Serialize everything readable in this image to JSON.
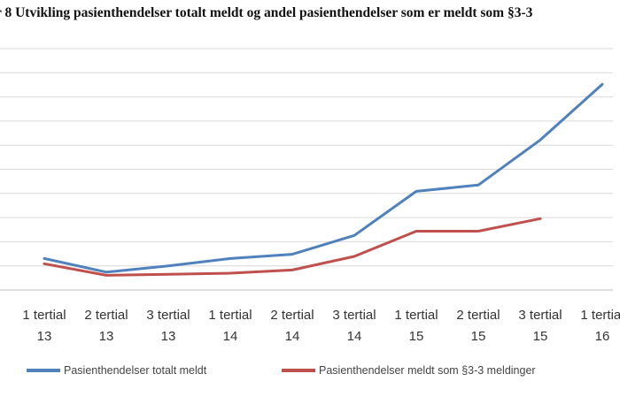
{
  "chart_data": {
    "type": "line",
    "title": "r 8 Utvikling pasienthendelser totalt meldt og andel pasienthendelser som er meldt som §3-3",
    "categories": [
      [
        "1 tertial",
        "13"
      ],
      [
        "2 tertial",
        "13"
      ],
      [
        "3 tertial",
        "13"
      ],
      [
        "1 tertial",
        "14"
      ],
      [
        "2 tertial",
        "14"
      ],
      [
        "3 tertial",
        "14"
      ],
      [
        "1 tertial",
        "15"
      ],
      [
        "2 tertial",
        "15"
      ],
      [
        "3 tertial",
        "15"
      ],
      [
        "1 tertial",
        "16"
      ]
    ],
    "series": [
      {
        "name": "Pasienthendelser totalt meldt",
        "color": "#4f81bd",
        "values": [
          3.0,
          1.7,
          2.3,
          3.0,
          3.4,
          5.2,
          9.4,
          10.0,
          14.3,
          19.6
        ]
      },
      {
        "name": "Pasienthendelser meldt som §3-3 meldinger",
        "color": "#c0504d",
        "values": [
          2.5,
          1.4,
          1.5,
          1.6,
          1.9,
          3.2,
          5.6,
          5.6,
          6.8,
          null
        ]
      }
    ],
    "ylim": [
      0,
      23
    ],
    "grid": true,
    "legend_position": "bottom",
    "gridline_color": "#d9d9d9"
  }
}
